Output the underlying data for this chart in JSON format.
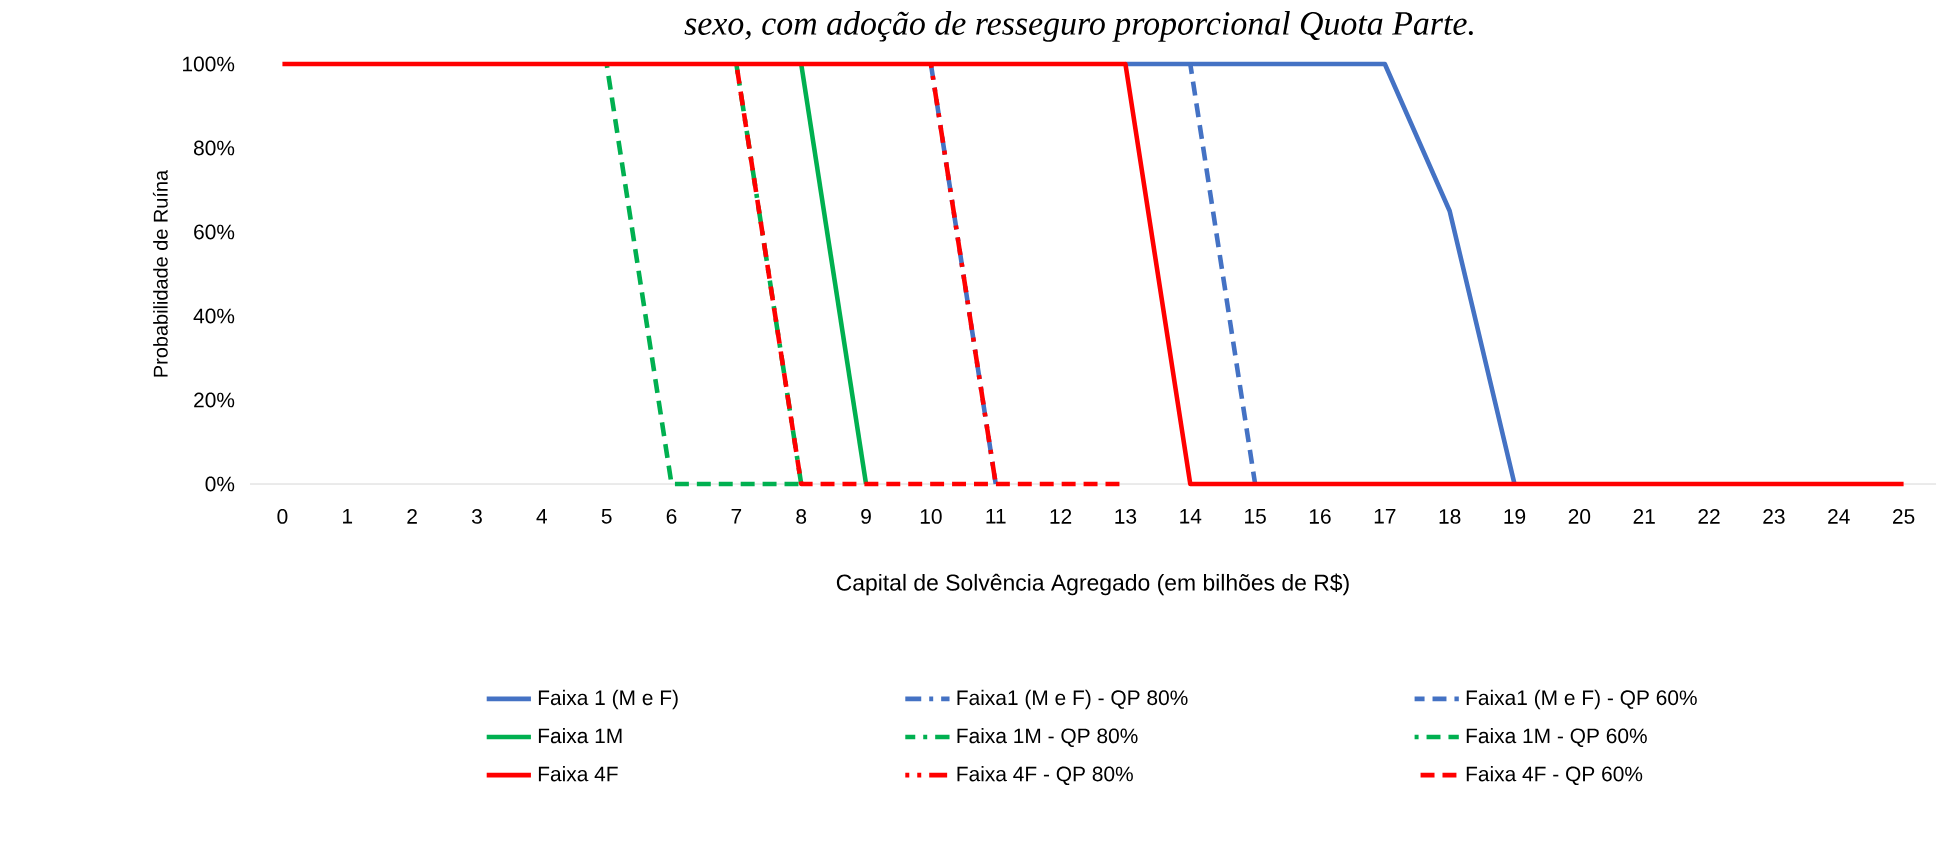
{
  "chart_data": {
    "type": "line",
    "title": "sexo, com adoção de resseguro proporcional Quota Parte.",
    "xlabel": "Capital de Solvência Agregado (em bilhões de R$)",
    "ylabel": "Probabilidade de Ruína",
    "categories": [
      "0",
      "1",
      "2",
      "3",
      "4",
      "5",
      "6",
      "7",
      "8",
      "9",
      "10",
      "11",
      "12",
      "13",
      "14",
      "15",
      "16",
      "17",
      "18",
      "19",
      "20",
      "21",
      "22",
      "23",
      "24",
      "25"
    ],
    "ylim": [
      0,
      100
    ],
    "yticks": [
      {
        "value": 0,
        "label": "0%"
      },
      {
        "value": 20,
        "label": "20%"
      },
      {
        "value": 40,
        "label": "40%"
      },
      {
        "value": 60,
        "label": "60%"
      },
      {
        "value": 80,
        "label": "80%"
      },
      {
        "value": 100,
        "label": "100%"
      }
    ],
    "grid": false,
    "legend": "bottom",
    "marker": "none",
    "series": [
      {
        "name": "Faixa 1 (M e F)",
        "color": "#4472c4",
        "line_style": "solid",
        "values": [
          null,
          null,
          null,
          null,
          null,
          null,
          null,
          null,
          null,
          null,
          null,
          null,
          null,
          100,
          100,
          100,
          100,
          100,
          65,
          0,
          null,
          null,
          null,
          null,
          null,
          null
        ]
      },
      {
        "name": "Faixa1 (M e F) - QP 80%",
        "color": "#4472c4",
        "line_style": "dashdot",
        "values": [
          null,
          null,
          null,
          null,
          null,
          null,
          null,
          null,
          null,
          null,
          100,
          0,
          null,
          null,
          null,
          null,
          null,
          null,
          null,
          null,
          null,
          null,
          null,
          null,
          null,
          null
        ]
      },
      {
        "name": "Faixa1 (M e F) - QP 60%",
        "color": "#4472c4",
        "line_style": "dashed",
        "values": [
          null,
          null,
          null,
          null,
          null,
          null,
          null,
          null,
          null,
          null,
          null,
          null,
          null,
          null,
          100,
          0,
          null,
          null,
          null,
          null,
          null,
          null,
          null,
          null,
          null,
          null
        ]
      },
      {
        "name": "Faixa 1M",
        "color": "#00b050",
        "line_style": "solid",
        "values": [
          null,
          null,
          null,
          null,
          null,
          null,
          null,
          null,
          100,
          0,
          null,
          null,
          null,
          null,
          null,
          null,
          null,
          null,
          null,
          null,
          null,
          null,
          null,
          null,
          null,
          null
        ]
      },
      {
        "name": "Faixa 1M - QP 80%",
        "color": "#00b050",
        "line_style": "dashdot",
        "values": [
          null,
          null,
          null,
          null,
          null,
          null,
          null,
          100,
          0,
          null,
          null,
          null,
          null,
          null,
          null,
          null,
          null,
          null,
          null,
          null,
          null,
          null,
          null,
          null,
          null,
          null
        ]
      },
      {
        "name": "Faixa 1M - QP 60%",
        "color": "#00b050",
        "line_style": "dashed",
        "values": [
          null,
          null,
          null,
          null,
          null,
          100,
          0,
          0,
          0,
          null,
          null,
          null,
          null,
          null,
          null,
          null,
          null,
          null,
          null,
          null,
          null,
          null,
          null,
          null,
          null,
          null
        ]
      },
      {
        "name": "Faixa 4F",
        "color": "#ff0000",
        "line_style": "solid",
        "values": [
          100,
          100,
          100,
          100,
          100,
          100,
          100,
          100,
          100,
          100,
          100,
          100,
          100,
          100,
          0,
          0,
          0,
          0,
          0,
          0,
          0,
          0,
          0,
          0,
          0,
          0
        ]
      },
      {
        "name": "Faixa 4F - QP 80%",
        "color": "#ff0000",
        "line_style": "dashdot",
        "values": [
          null,
          null,
          null,
          null,
          null,
          null,
          null,
          null,
          null,
          null,
          100,
          0,
          null,
          null,
          null,
          null,
          null,
          null,
          null,
          null,
          null,
          null,
          null,
          null,
          null,
          null
        ]
      },
      {
        "name": "Faixa 4F - QP 60%",
        "color": "#ff0000",
        "line_style": "dashed",
        "values": [
          null,
          null,
          null,
          null,
          null,
          null,
          null,
          100,
          0,
          0,
          0,
          0,
          0,
          0,
          null,
          null,
          null,
          null,
          null,
          null,
          null,
          null,
          null,
          null,
          null,
          null
        ]
      }
    ]
  }
}
